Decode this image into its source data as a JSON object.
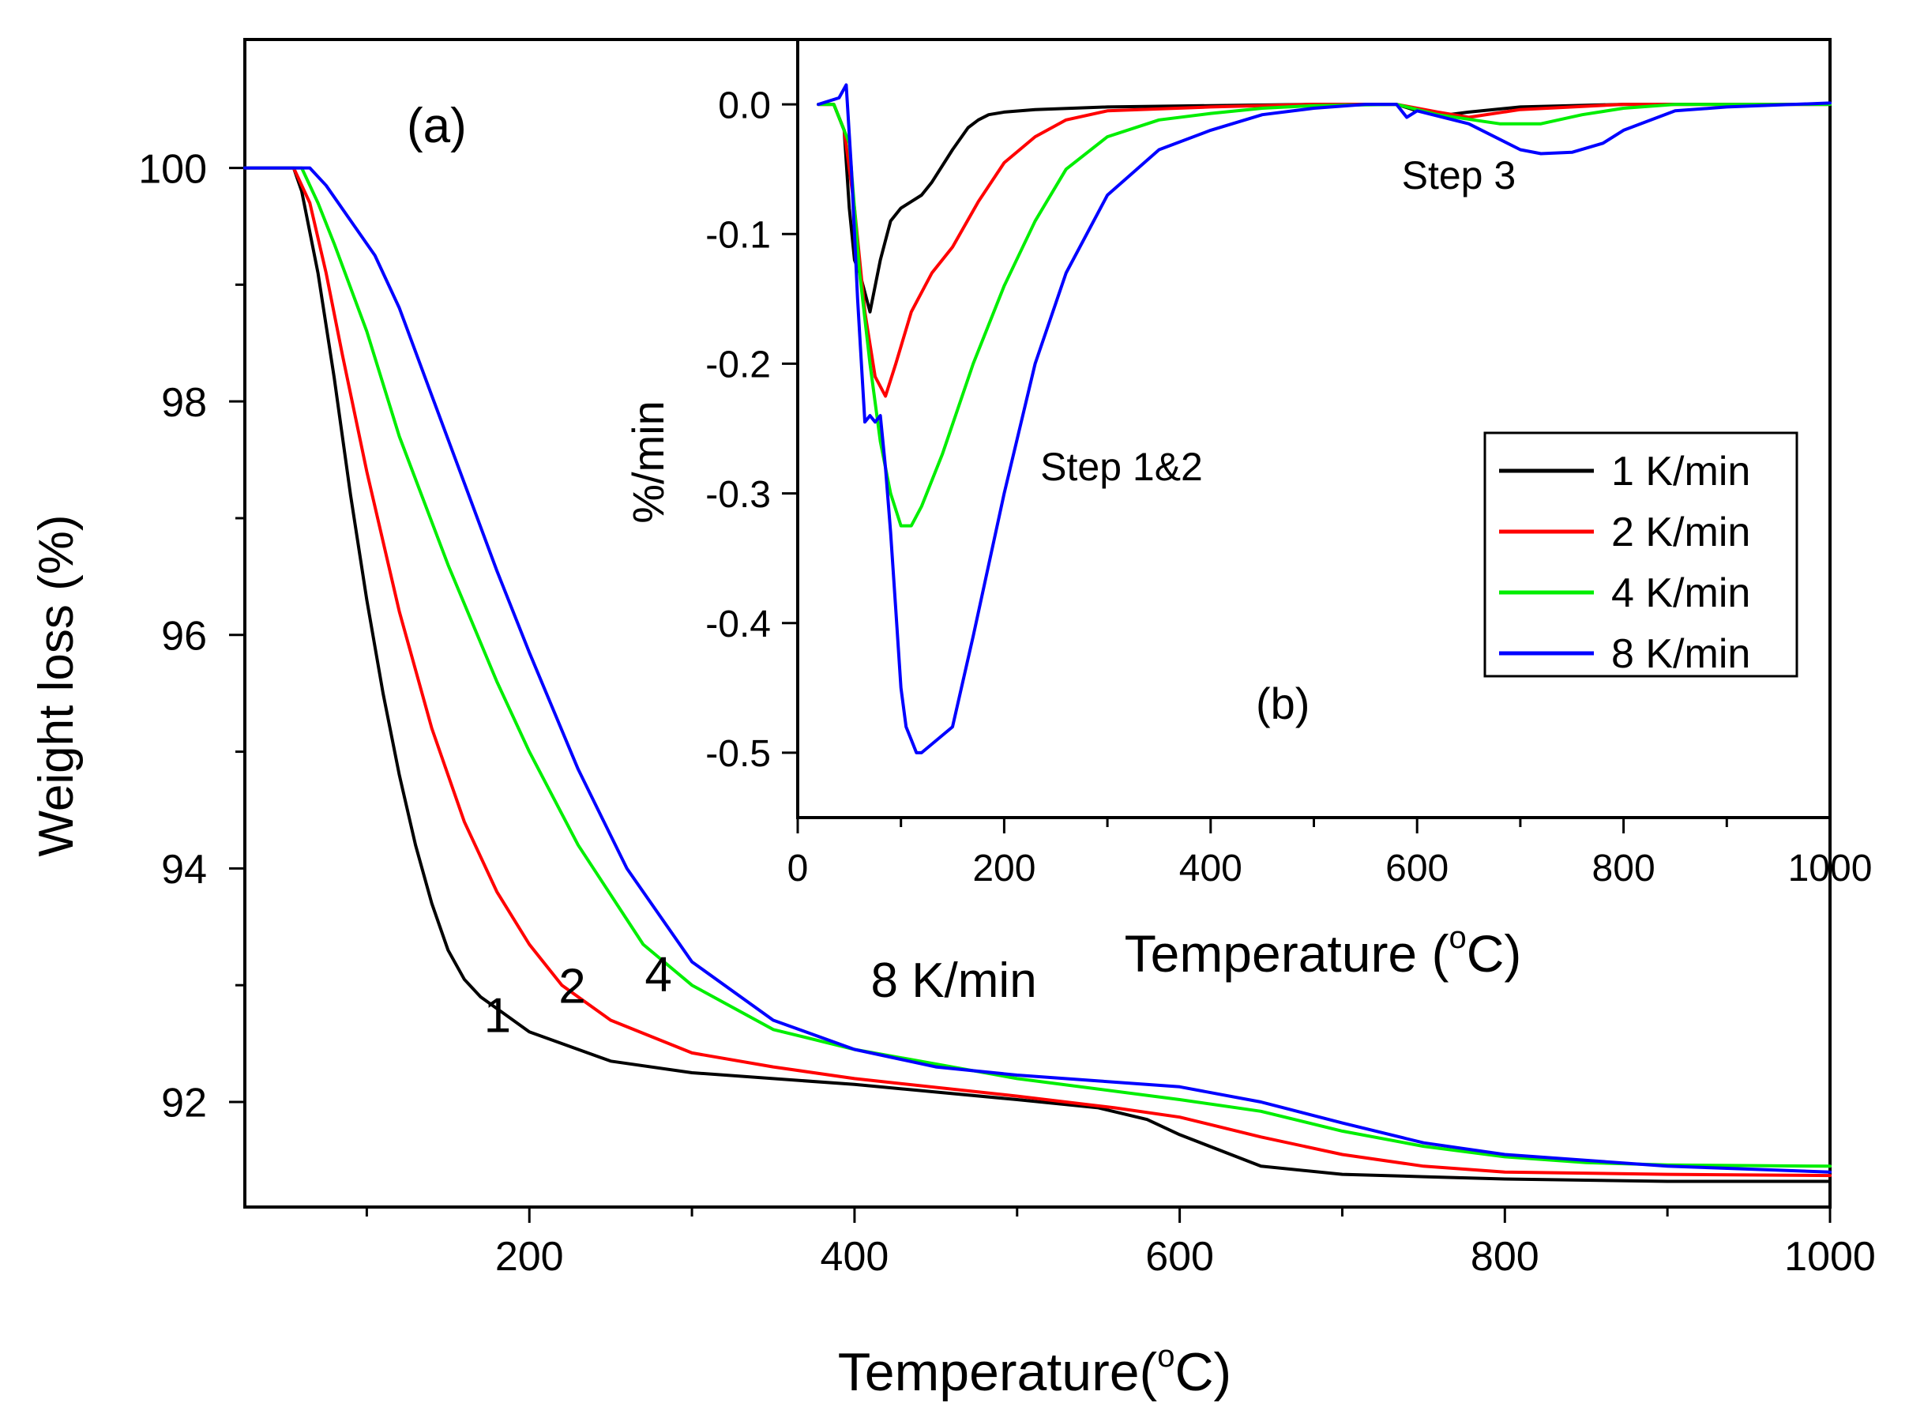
{
  "chart_data": [
    {
      "panel": "a",
      "type": "line",
      "panel_label": "(a)",
      "xlabel": "Temperature(°C)",
      "xlabel_base": "Temperature(",
      "xlabel_sup": "o",
      "xlabel_tail": "C)",
      "ylabel": "Weight loss (%)",
      "xlim": [
        25,
        1000
      ],
      "ylim": [
        91.1,
        101.1
      ],
      "xticks": [
        200,
        400,
        600,
        800,
        1000
      ],
      "xticks_minor": [
        100,
        300,
        500,
        700,
        900
      ],
      "yticks": [
        92,
        94,
        96,
        98,
        100
      ],
      "yticks_minor": [
        93,
        95,
        97,
        99
      ],
      "annotations": [
        {
          "text": "1",
          "x": 172,
          "y": 92.6
        },
        {
          "text": "2",
          "x": 218,
          "y": 92.85
        },
        {
          "text": "4",
          "x": 271,
          "y": 92.95
        },
        {
          "text": "8 K/min",
          "x": 410,
          "y": 92.9
        }
      ],
      "series": [
        {
          "name": "1 K/min",
          "color": "#000000",
          "x": [
            25,
            55,
            60,
            70,
            80,
            90,
            100,
            110,
            120,
            130,
            140,
            150,
            160,
            170,
            180,
            200,
            250,
            300,
            400,
            500,
            550,
            580,
            600,
            650,
            700,
            750,
            800,
            900,
            1000
          ],
          "y": [
            100,
            100,
            99.8,
            99.1,
            98.2,
            97.2,
            96.3,
            95.5,
            94.8,
            94.2,
            93.7,
            93.3,
            93.05,
            92.9,
            92.8,
            92.6,
            92.35,
            92.25,
            92.15,
            92.02,
            91.95,
            91.85,
            91.72,
            91.45,
            91.38,
            91.36,
            91.34,
            91.32,
            91.32
          ]
        },
        {
          "name": "2 K/min",
          "color": "#ff0000",
          "x": [
            25,
            55,
            65,
            75,
            85,
            100,
            120,
            140,
            160,
            180,
            200,
            220,
            250,
            300,
            350,
            400,
            500,
            560,
            600,
            650,
            700,
            750,
            800,
            900,
            1000
          ],
          "y": [
            100,
            100,
            99.7,
            99.1,
            98.4,
            97.4,
            96.2,
            95.2,
            94.4,
            93.8,
            93.35,
            93.0,
            92.7,
            92.42,
            92.3,
            92.2,
            92.05,
            91.95,
            91.87,
            91.7,
            91.55,
            91.45,
            91.4,
            91.38,
            91.37
          ]
        },
        {
          "name": "4 K/min",
          "color": "#00ee00",
          "x": [
            25,
            60,
            70,
            80,
            100,
            120,
            150,
            180,
            200,
            230,
            270,
            300,
            350,
            400,
            500,
            600,
            650,
            700,
            750,
            800,
            850,
            900,
            1000
          ],
          "y": [
            100,
            100,
            99.7,
            99.35,
            98.6,
            97.7,
            96.6,
            95.6,
            95.0,
            94.2,
            93.35,
            93.0,
            92.62,
            92.45,
            92.2,
            92.02,
            91.92,
            91.75,
            91.62,
            91.53,
            91.48,
            91.46,
            91.45
          ]
        },
        {
          "name": "8 K/min",
          "color": "#0000ff",
          "x": [
            25,
            65,
            75,
            90,
            105,
            120,
            140,
            160,
            180,
            200,
            230,
            260,
            300,
            350,
            400,
            450,
            500,
            550,
            600,
            650,
            700,
            750,
            800,
            850,
            900,
            1000
          ],
          "y": [
            100,
            100,
            99.85,
            99.55,
            99.25,
            98.8,
            98.05,
            97.3,
            96.55,
            95.85,
            94.85,
            94.0,
            93.2,
            92.7,
            92.45,
            92.3,
            92.23,
            92.18,
            92.13,
            92.0,
            91.82,
            91.65,
            91.55,
            91.5,
            91.45,
            91.4
          ]
        }
      ]
    },
    {
      "panel": "b",
      "type": "line",
      "panel_label": "(b)",
      "xlabel": "Temperature (°C)",
      "xlabel_base": "Temperature (",
      "xlabel_sup": "o",
      "xlabel_tail": "C)",
      "ylabel": "%/min",
      "xlim": [
        0,
        1000
      ],
      "ylim": [
        -0.55,
        0.05
      ],
      "xticks": [
        0,
        200,
        400,
        600,
        800,
        1000
      ],
      "xticks_minor": [
        100,
        300,
        500,
        700,
        900
      ],
      "yticks": [
        0.0,
        -0.1,
        -0.2,
        -0.3,
        -0.4,
        -0.5
      ],
      "ytick_labels": [
        "0.0",
        "-0.1",
        "-0.2",
        "-0.3",
        "-0.4",
        "-0.5"
      ],
      "legend": {
        "position": "right",
        "entries": [
          "1 K/min",
          "2 K/min",
          "4 K/min",
          "8 K/min"
        ]
      },
      "annotations": [
        {
          "text": "Step 1&2",
          "x": 235,
          "y": -0.29
        },
        {
          "text": "Step 3",
          "x": 585,
          "y": -0.065
        }
      ],
      "series": [
        {
          "name": "1 K/min",
          "color": "#000000",
          "x": [
            20,
            35,
            45,
            50,
            55,
            60,
            65,
            70,
            80,
            90,
            100,
            110,
            120,
            130,
            150,
            165,
            175,
            185,
            200,
            230,
            300,
            400,
            500,
            580,
            600,
            630,
            650,
            700,
            800,
            1000
          ],
          "y": [
            0,
            0,
            -0.02,
            -0.08,
            -0.12,
            -0.13,
            -0.145,
            -0.16,
            -0.12,
            -0.09,
            -0.08,
            -0.075,
            -0.07,
            -0.06,
            -0.035,
            -0.018,
            -0.012,
            -0.008,
            -0.006,
            -0.004,
            -0.002,
            -0.001,
            0,
            0,
            -0.005,
            -0.008,
            -0.006,
            -0.002,
            0,
            0
          ]
        },
        {
          "name": "2 K/min",
          "color": "#ff0000",
          "x": [
            20,
            35,
            45,
            55,
            65,
            75,
            85,
            95,
            110,
            130,
            150,
            175,
            200,
            230,
            260,
            300,
            400,
            500,
            580,
            620,
            650,
            700,
            800,
            1000
          ],
          "y": [
            0,
            0,
            -0.02,
            -0.08,
            -0.16,
            -0.21,
            -0.225,
            -0.2,
            -0.16,
            -0.13,
            -0.11,
            -0.075,
            -0.045,
            -0.025,
            -0.012,
            -0.005,
            -0.002,
            0,
            0,
            -0.006,
            -0.01,
            -0.004,
            0,
            0
          ]
        },
        {
          "name": "4 K/min",
          "color": "#00ee00",
          "x": [
            20,
            35,
            50,
            60,
            70,
            80,
            90,
            100,
            110,
            120,
            140,
            170,
            200,
            230,
            260,
            300,
            350,
            400,
            450,
            500,
            580,
            620,
            680,
            720,
            760,
            800,
            850,
            1000
          ],
          "y": [
            0,
            0,
            -0.03,
            -0.13,
            -0.2,
            -0.26,
            -0.3,
            -0.325,
            -0.325,
            -0.31,
            -0.27,
            -0.2,
            -0.14,
            -0.09,
            -0.05,
            -0.025,
            -0.012,
            -0.007,
            -0.003,
            -0.001,
            0,
            -0.008,
            -0.015,
            -0.015,
            -0.008,
            -0.003,
            0,
            0
          ]
        },
        {
          "name": "8 K/min",
          "color": "#0000ff",
          "x": [
            20,
            40,
            47,
            52,
            58,
            65,
            70,
            75,
            80,
            85,
            90,
            95,
            100,
            105,
            110,
            115,
            120,
            135,
            150,
            170,
            200,
            230,
            260,
            300,
            350,
            400,
            450,
            500,
            550,
            580,
            590,
            600,
            650,
            700,
            720,
            750,
            780,
            800,
            850,
            900,
            1000
          ],
          "y": [
            0,
            0.005,
            0.015,
            -0.05,
            -0.15,
            -0.245,
            -0.24,
            -0.245,
            -0.24,
            -0.28,
            -0.33,
            -0.39,
            -0.45,
            -0.48,
            -0.49,
            -0.5,
            -0.5,
            -0.49,
            -0.48,
            -0.41,
            -0.3,
            -0.2,
            -0.13,
            -0.07,
            -0.035,
            -0.02,
            -0.008,
            -0.003,
            0,
            0,
            -0.01,
            -0.005,
            -0.015,
            -0.035,
            -0.038,
            -0.037,
            -0.03,
            -0.02,
            -0.005,
            -0.002,
            0.001
          ]
        }
      ]
    }
  ]
}
